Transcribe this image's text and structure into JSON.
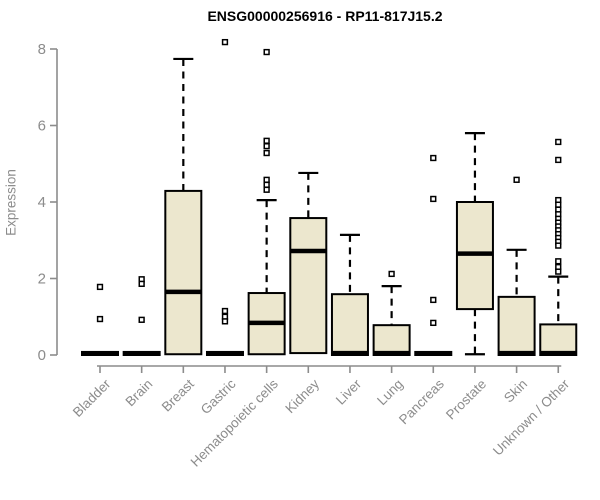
{
  "chart_data": {
    "type": "boxplot",
    "title": "ENSG00000256916 - RP11-817J15.2",
    "ylabel": "Expression",
    "ylim": [
      0,
      8.3
    ],
    "yticks": [
      0,
      2,
      4,
      6,
      8
    ],
    "grid": false,
    "legend": false,
    "colors": {
      "box_fill": "#ECE7CE",
      "box_stroke": "#000000",
      "median": "#000000",
      "whisker": "#000000",
      "outlier_stroke": "#000000",
      "outlier_fill": "#ffffff",
      "axis": "#8c8c8c",
      "tick_label": "#8c8c8c",
      "title": "#000000",
      "background": "#ffffff"
    },
    "categories": [
      "Bladder",
      "Brain",
      "Breast",
      "Gastric",
      "Hematopoietic cells",
      "Kidney",
      "Liver",
      "Lung",
      "Pancreas",
      "Prostate",
      "Skin",
      "Unknown / Other"
    ],
    "series": [
      {
        "category": "Bladder",
        "q1": 0,
        "median": 0.04,
        "q3": 0.08,
        "whisker_low": null,
        "whisker_high": null,
        "outliers": [
          1.78,
          0.94
        ]
      },
      {
        "category": "Brain",
        "q1": 0,
        "median": 0.04,
        "q3": 0.08,
        "whisker_low": null,
        "whisker_high": null,
        "outliers": [
          1.98,
          1.86,
          0.92
        ]
      },
      {
        "category": "Breast",
        "q1": 0.02,
        "median": 1.65,
        "q3": 4.29,
        "whisker_low": null,
        "whisker_high": 7.74,
        "outliers": []
      },
      {
        "category": "Gastric",
        "q1": 0,
        "median": 0.04,
        "q3": 0.08,
        "whisker_low": null,
        "whisker_high": null,
        "outliers": [
          8.18,
          1.15,
          1.0,
          0.88
        ]
      },
      {
        "category": "Hematopoietic cells",
        "q1": 0.02,
        "median": 0.84,
        "q3": 1.62,
        "whisker_low": null,
        "whisker_high": 4.05,
        "outliers": [
          7.92,
          5.6,
          5.46,
          5.28,
          4.58,
          4.45,
          4.32
        ]
      },
      {
        "category": "Kidney",
        "q1": 0.05,
        "median": 2.72,
        "q3": 3.58,
        "whisker_low": null,
        "whisker_high": 4.76,
        "outliers": []
      },
      {
        "category": "Liver",
        "q1": 0,
        "median": 0.05,
        "q3": 1.59,
        "whisker_low": null,
        "whisker_high": 3.14,
        "outliers": []
      },
      {
        "category": "Lung",
        "q1": 0,
        "median": 0.05,
        "q3": 0.78,
        "whisker_low": null,
        "whisker_high": 1.8,
        "outliers": [
          2.12
        ]
      },
      {
        "category": "Pancreas",
        "q1": 0,
        "median": 0.04,
        "q3": 0.08,
        "whisker_low": null,
        "whisker_high": null,
        "outliers": [
          5.15,
          4.08,
          1.44,
          0.84
        ]
      },
      {
        "category": "Prostate",
        "q1": 1.2,
        "median": 2.65,
        "q3": 4.0,
        "whisker_low": 0.02,
        "whisker_high": 5.8,
        "outliers": []
      },
      {
        "category": "Skin",
        "q1": 0,
        "median": 0.05,
        "q3": 1.52,
        "whisker_low": null,
        "whisker_high": 2.75,
        "outliers": [
          4.58
        ]
      },
      {
        "category": "Unknown / Other",
        "q1": 0,
        "median": 0.05,
        "q3": 0.8,
        "whisker_low": null,
        "whisker_high": 2.05,
        "outliers": [
          5.57,
          5.1,
          4.05,
          3.93,
          3.8,
          3.68,
          3.56,
          3.46,
          3.36,
          3.26,
          3.16,
          3.06,
          2.96,
          2.86,
          2.45,
          2.3,
          2.18
        ]
      }
    ]
  }
}
